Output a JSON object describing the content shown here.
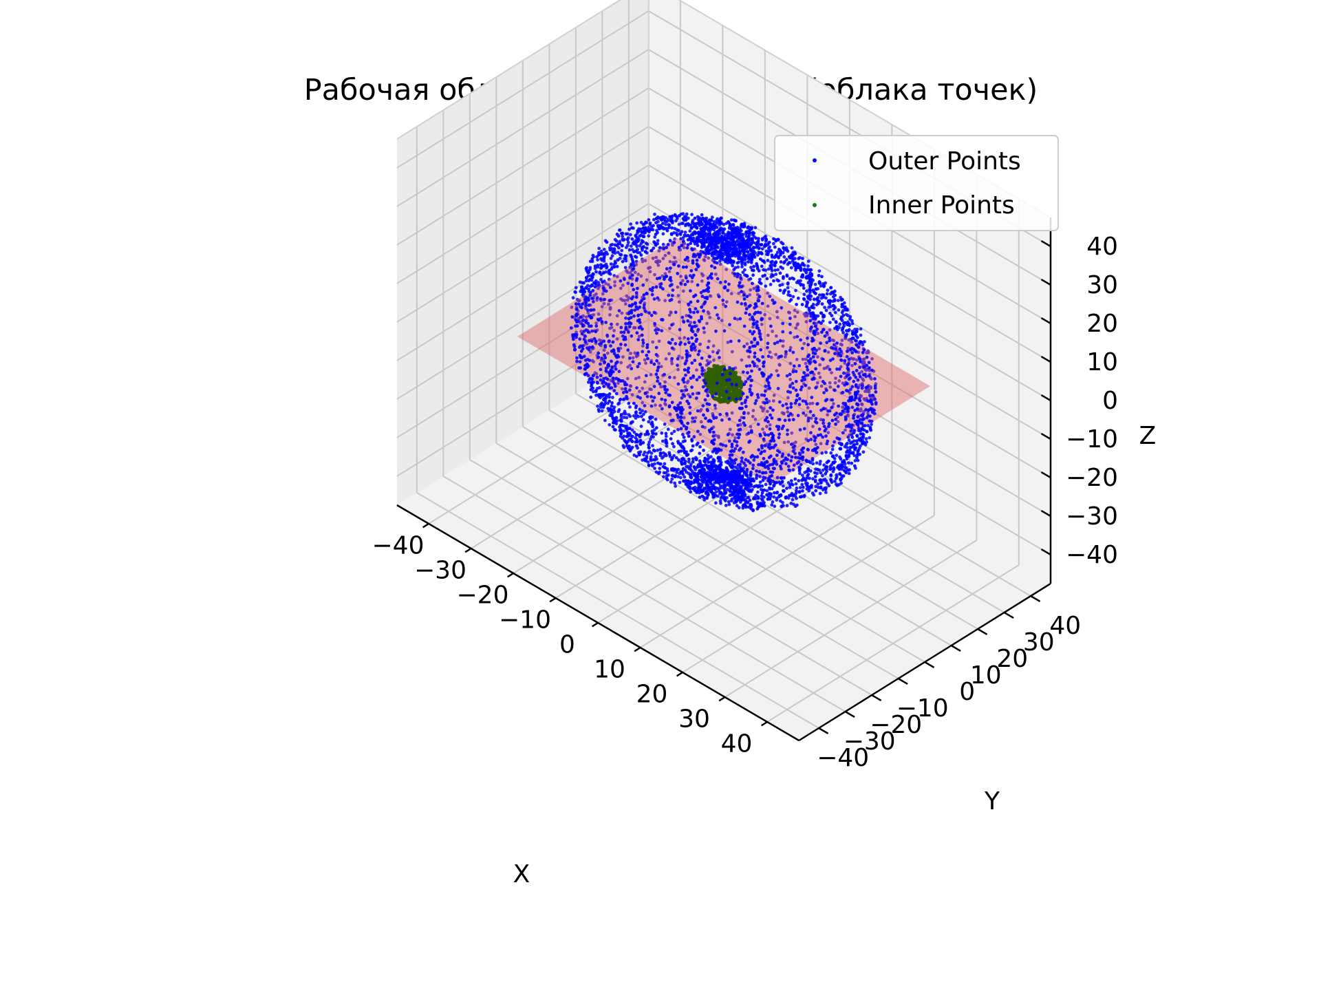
{
  "chart_data": {
    "type": "scatter",
    "title": "Рабочая область манипулятора (облака точек)",
    "xlabel": "X",
    "ylabel": "Y",
    "zlabel": "Z",
    "xlim": [
      -40,
      40
    ],
    "ylim": [
      -40,
      40
    ],
    "zlim": [
      -40,
      40
    ],
    "x_ticks": [
      "−40",
      "−30",
      "−20",
      "−10",
      "0",
      "10",
      "20",
      "30",
      "40"
    ],
    "y_ticks": [
      "−40",
      "−30",
      "−20",
      "−10",
      "0",
      "10",
      "20",
      "30",
      "40"
    ],
    "z_ticks": [
      "−40",
      "−30",
      "−20",
      "−10",
      "0",
      "10",
      "20",
      "30",
      "40"
    ],
    "grid": true,
    "legend": {
      "placement": "top-right",
      "entries": [
        "Outer Points",
        "Inner Points"
      ]
    },
    "series": [
      {
        "name": "Outer Points",
        "color": "#0000ff",
        "shape": "ellipsoid shell of radius ~30 with dense meridian bands",
        "approx_radius": 30,
        "approx_point_count": 6000
      },
      {
        "name": "Inner Points",
        "color": "#006400",
        "shape": "small sphere cluster at origin",
        "approx_radius": 4,
        "approx_point_count": 400
      }
    ],
    "plane": {
      "z": 0,
      "color": "#e06666",
      "opacity": 0.45,
      "extent": [
        -30,
        30
      ]
    }
  }
}
